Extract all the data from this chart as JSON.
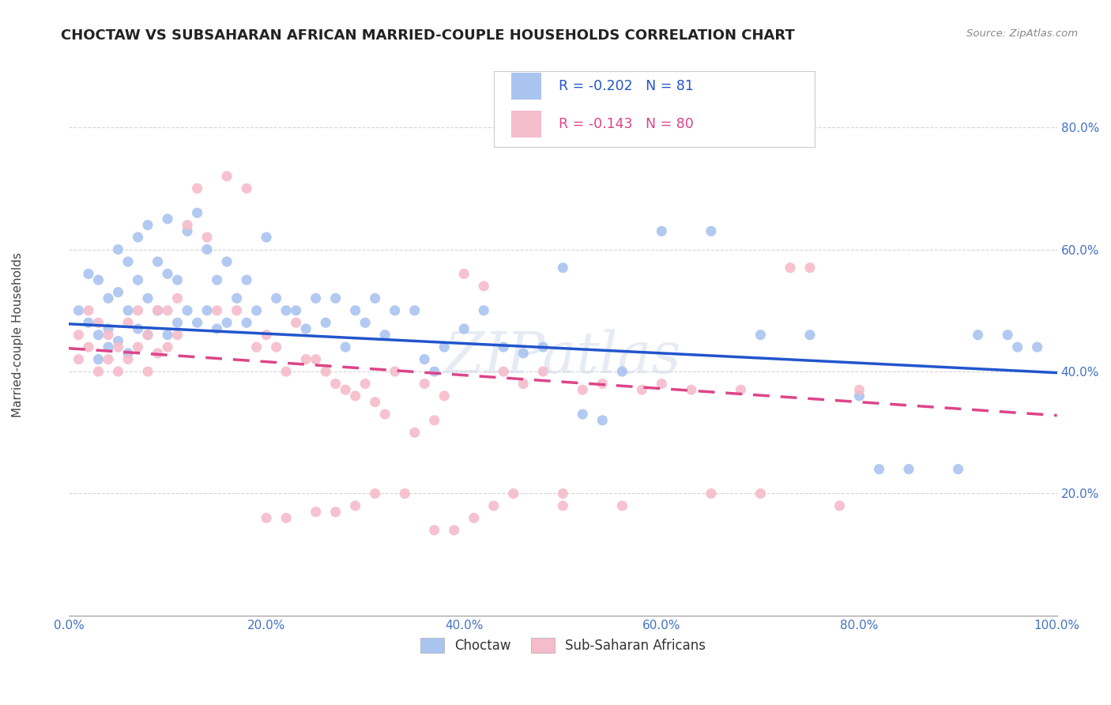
{
  "title": "CHOCTAW VS SUBSAHARAN AFRICAN MARRIED-COUPLE HOUSEHOLDS CORRELATION CHART",
  "source": "Source: ZipAtlas.com",
  "ylabel": "Married-couple Households",
  "xlim": [
    0.0,
    1.0
  ],
  "ylim": [
    0.0,
    0.92
  ],
  "xtick_vals": [
    0.0,
    0.2,
    0.4,
    0.6,
    0.8,
    1.0
  ],
  "ytick_vals": [
    0.0,
    0.2,
    0.4,
    0.6,
    0.8
  ],
  "ytick_labels": [
    "",
    "20.0%",
    "40.0%",
    "60.0%",
    "80.0%"
  ],
  "xtick_labels": [
    "0.0%",
    "20.0%",
    "40.0%",
    "60.0%",
    "80.0%",
    "100.0%"
  ],
  "legend_labels": [
    "Choctaw",
    "Sub-Saharan Africans"
  ],
  "blue_color": "#aac4f0",
  "pink_color": "#f5bccb",
  "blue_line_color": "#2255cc",
  "pink_line_color": "#dd4488",
  "r_blue": -0.202,
  "n_blue": 81,
  "r_pink": -0.143,
  "n_pink": 80,
  "watermark": "ZIPatlas",
  "blue_scatter_x": [
    0.01,
    0.02,
    0.02,
    0.03,
    0.03,
    0.03,
    0.04,
    0.04,
    0.04,
    0.05,
    0.05,
    0.05,
    0.06,
    0.06,
    0.06,
    0.07,
    0.07,
    0.07,
    0.08,
    0.08,
    0.08,
    0.09,
    0.09,
    0.1,
    0.1,
    0.1,
    0.11,
    0.11,
    0.12,
    0.12,
    0.13,
    0.13,
    0.14,
    0.14,
    0.15,
    0.15,
    0.16,
    0.16,
    0.17,
    0.18,
    0.18,
    0.19,
    0.2,
    0.21,
    0.22,
    0.23,
    0.24,
    0.25,
    0.26,
    0.27,
    0.28,
    0.29,
    0.3,
    0.31,
    0.32,
    0.33,
    0.35,
    0.36,
    0.37,
    0.38,
    0.4,
    0.42,
    0.44,
    0.46,
    0.48,
    0.5,
    0.52,
    0.54,
    0.56,
    0.6,
    0.65,
    0.7,
    0.75,
    0.8,
    0.82,
    0.85,
    0.9,
    0.92,
    0.95,
    0.96,
    0.98
  ],
  "blue_scatter_y": [
    0.5,
    0.56,
    0.48,
    0.55,
    0.46,
    0.42,
    0.52,
    0.47,
    0.44,
    0.6,
    0.53,
    0.45,
    0.58,
    0.5,
    0.43,
    0.62,
    0.55,
    0.47,
    0.64,
    0.52,
    0.46,
    0.58,
    0.5,
    0.65,
    0.56,
    0.46,
    0.55,
    0.48,
    0.63,
    0.5,
    0.66,
    0.48,
    0.6,
    0.5,
    0.55,
    0.47,
    0.58,
    0.48,
    0.52,
    0.55,
    0.48,
    0.5,
    0.62,
    0.52,
    0.5,
    0.5,
    0.47,
    0.52,
    0.48,
    0.52,
    0.44,
    0.5,
    0.48,
    0.52,
    0.46,
    0.5,
    0.5,
    0.42,
    0.4,
    0.44,
    0.47,
    0.5,
    0.44,
    0.43,
    0.44,
    0.57,
    0.33,
    0.32,
    0.4,
    0.63,
    0.63,
    0.46,
    0.46,
    0.36,
    0.24,
    0.24,
    0.24,
    0.46,
    0.46,
    0.44,
    0.44
  ],
  "pink_scatter_x": [
    0.01,
    0.01,
    0.02,
    0.02,
    0.03,
    0.03,
    0.04,
    0.04,
    0.05,
    0.05,
    0.06,
    0.06,
    0.07,
    0.07,
    0.08,
    0.08,
    0.09,
    0.09,
    0.1,
    0.1,
    0.11,
    0.11,
    0.12,
    0.13,
    0.14,
    0.15,
    0.16,
    0.17,
    0.18,
    0.19,
    0.2,
    0.21,
    0.22,
    0.23,
    0.24,
    0.25,
    0.26,
    0.27,
    0.28,
    0.29,
    0.3,
    0.31,
    0.32,
    0.33,
    0.35,
    0.36,
    0.37,
    0.38,
    0.4,
    0.42,
    0.44,
    0.46,
    0.48,
    0.5,
    0.52,
    0.54,
    0.56,
    0.58,
    0.6,
    0.63,
    0.65,
    0.68,
    0.7,
    0.73,
    0.75,
    0.78,
    0.8,
    0.5,
    0.45,
    0.43,
    0.41,
    0.39,
    0.37,
    0.34,
    0.31,
    0.29,
    0.27,
    0.25,
    0.22,
    0.2
  ],
  "pink_scatter_y": [
    0.46,
    0.42,
    0.5,
    0.44,
    0.48,
    0.4,
    0.46,
    0.42,
    0.44,
    0.4,
    0.48,
    0.42,
    0.5,
    0.44,
    0.46,
    0.4,
    0.5,
    0.43,
    0.5,
    0.44,
    0.52,
    0.46,
    0.64,
    0.7,
    0.62,
    0.5,
    0.72,
    0.5,
    0.7,
    0.44,
    0.46,
    0.44,
    0.4,
    0.48,
    0.42,
    0.42,
    0.4,
    0.38,
    0.37,
    0.36,
    0.38,
    0.35,
    0.33,
    0.4,
    0.3,
    0.38,
    0.32,
    0.36,
    0.56,
    0.54,
    0.4,
    0.38,
    0.4,
    0.18,
    0.37,
    0.38,
    0.18,
    0.37,
    0.38,
    0.37,
    0.2,
    0.37,
    0.2,
    0.57,
    0.57,
    0.18,
    0.37,
    0.2,
    0.2,
    0.18,
    0.16,
    0.14,
    0.14,
    0.2,
    0.2,
    0.18,
    0.17,
    0.17,
    0.16,
    0.16
  ],
  "blue_line_y_start": 0.478,
  "blue_line_y_end": 0.398,
  "pink_line_y_start": 0.438,
  "pink_line_y_end": 0.328,
  "background_color": "#ffffff",
  "grid_color": "#cccccc",
  "title_color": "#222222",
  "axis_label_color": "#444444",
  "tick_label_color": "#4472c4"
}
